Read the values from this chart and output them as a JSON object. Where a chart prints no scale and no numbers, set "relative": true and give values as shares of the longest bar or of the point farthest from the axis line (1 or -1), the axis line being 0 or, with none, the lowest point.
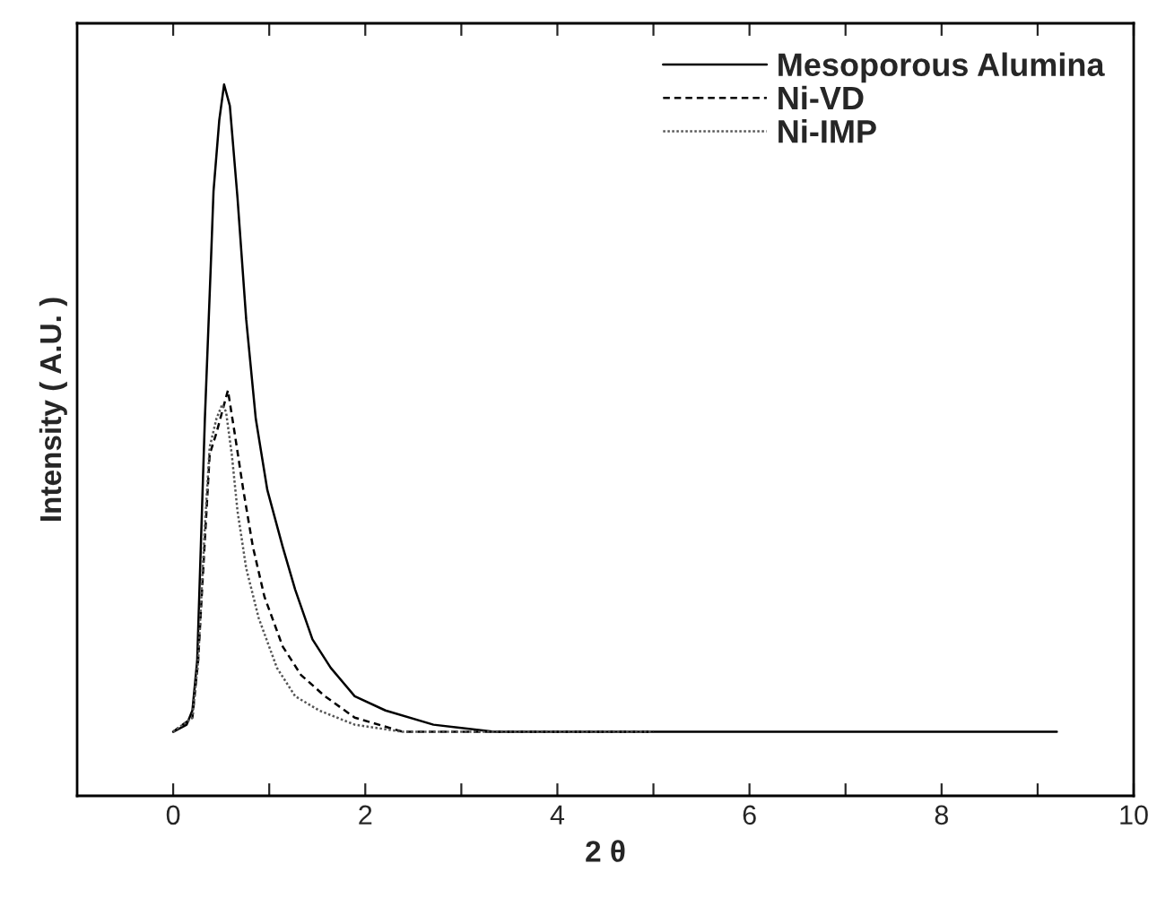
{
  "chart_data": {
    "type": "line",
    "xlabel": "2 θ",
    "ylabel": "Intensity ( A.U. )",
    "relative": true,
    "xlim": [
      -1,
      10
    ],
    "xticks": [
      0,
      {
        "value": 1,
        "label": null
      },
      2,
      {
        "value": 3,
        "label": null
      },
      4,
      {
        "value": 5,
        "label": null
      },
      6,
      {
        "value": 7,
        "label": null
      },
      8,
      {
        "value": 9,
        "label": null
      },
      10
    ],
    "legend": "top right",
    "grid": false,
    "marker": "none",
    "series": [
      {
        "name": "Mesoporous Alumina",
        "color": "#000000",
        "line_style": "solid",
        "x": [
          0,
          0.14,
          0.2,
          0.25,
          0.29,
          0.33,
          0.39,
          0.42,
          0.48,
          0.53,
          0.59,
          0.67,
          0.76,
          0.86,
          0.98,
          1.14,
          1.27,
          1.45,
          1.64,
          1.89,
          2.21,
          2.71,
          3.34,
          3.96,
          9.2
        ],
        "values": [
          0.09,
          0.1,
          0.12,
          0.19,
          0.36,
          0.53,
          0.74,
          0.85,
          0.95,
          1.0,
          0.97,
          0.84,
          0.67,
          0.53,
          0.43,
          0.35,
          0.29,
          0.22,
          0.18,
          0.14,
          0.12,
          0.1,
          0.09,
          0.09,
          0.09
        ]
      },
      {
        "name": "Ni-VD",
        "color": "#000000",
        "line_style": "dashed",
        "x": [
          0,
          0.2,
          0.26,
          0.33,
          0.38,
          0.45,
          0.51,
          0.57,
          0.64,
          0.73,
          0.83,
          0.95,
          1.14,
          1.33,
          1.58,
          1.89,
          2.39,
          3.02,
          5.0
        ],
        "values": [
          0.09,
          0.11,
          0.19,
          0.36,
          0.48,
          0.51,
          0.54,
          0.57,
          0.51,
          0.43,
          0.35,
          0.28,
          0.21,
          0.17,
          0.14,
          0.11,
          0.09,
          0.09,
          0.09
        ]
      },
      {
        "name": "Ni-IMP",
        "color": "#555555",
        "line_style": "dotted",
        "x": [
          0,
          0.2,
          0.26,
          0.33,
          0.38,
          0.45,
          0.51,
          0.55,
          0.61,
          0.67,
          0.76,
          0.89,
          1.08,
          1.27,
          1.52,
          1.89,
          2.39,
          3.02,
          5.0
        ],
        "values": [
          0.09,
          0.11,
          0.19,
          0.38,
          0.49,
          0.53,
          0.55,
          0.54,
          0.48,
          0.4,
          0.32,
          0.25,
          0.18,
          0.14,
          0.12,
          0.1,
          0.09,
          0.09,
          0.09
        ]
      }
    ]
  }
}
